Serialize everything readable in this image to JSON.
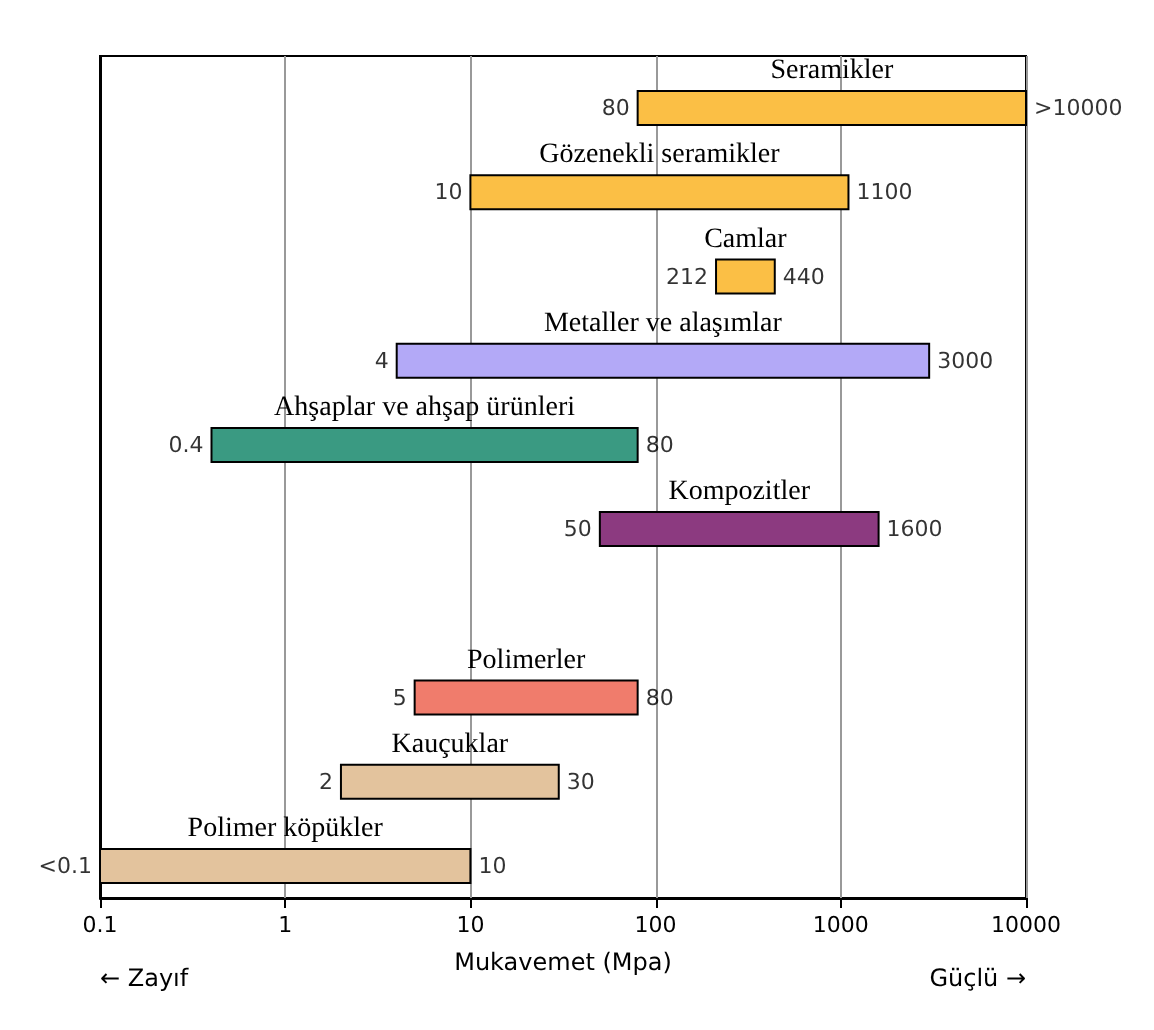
{
  "chart_data": {
    "type": "bar",
    "orientation": "horizontal",
    "xlabel": "Mukavemet (Mpa)",
    "log": "x",
    "xlim": [
      0.1,
      10000
    ],
    "xticks": [
      0.1,
      1,
      10,
      100,
      1000,
      10000
    ],
    "grid": "x",
    "tick_labels": "x",
    "categories": [
      "Seramikler",
      "Gözenekli seramikler",
      "Camlar",
      "Metaller ve alaşımlar",
      "Ahşaplar ve ahşap ürünleri",
      "Kompozitler",
      null,
      "Polimerler",
      "Kauçuklar",
      "Polimer köpükler"
    ],
    "base": [
      80,
      10,
      212,
      4,
      0.4,
      50,
      null,
      5,
      2,
      0.1
    ],
    "values": [
      9920,
      1090,
      228,
      2996,
      79.6,
      1550,
      null,
      75,
      28,
      9.9
    ],
    "colors": [
      "#fbbf45",
      "#fbbf45",
      "#fbbf45",
      "#b3a9f7",
      "#3a9a82",
      "#8c3a80",
      null,
      "#f07c6c",
      "#e3c39d",
      "#e3c39d"
    ],
    "annotations": [
      {
        "text": "80",
        "x": 80,
        "y": "Seramikler"
      },
      {
        "text": ">10000",
        "x": 10000,
        "y": "Seramikler"
      },
      {
        "text": "10",
        "x": 10,
        "y": "Gözenekli seramikler"
      },
      {
        "text": "1100",
        "x": 1100,
        "y": "Gözenekli seramikler"
      },
      {
        "text": "212",
        "x": 212,
        "y": "Camlar"
      },
      {
        "text": "440",
        "x": 440,
        "y": "Camlar"
      },
      {
        "text": "4",
        "x": 4,
        "y": "Metaller ve alaşımlar"
      },
      {
        "text": "3000",
        "x": 3000,
        "y": "Metaller ve alaşımlar"
      },
      {
        "text": "0.4",
        "x": 0.4,
        "y": "Ahşaplar ve ahşap ürünleri"
      },
      {
        "text": "80",
        "x": 80,
        "y": "Ahşaplar ve ahşap ürünleri"
      },
      {
        "text": "50",
        "x": 50,
        "y": "Kompozitler"
      },
      {
        "text": "1600",
        "x": 1600,
        "y": "Kompozitler"
      },
      {
        "text": "5",
        "x": 5,
        "y": "Polimerler"
      },
      {
        "text": "80",
        "x": 80,
        "y": "Polimerler"
      },
      {
        "text": "2",
        "x": 2,
        "y": "Kauçuklar"
      },
      {
        "text": "30",
        "x": 30,
        "y": "Kauçuklar"
      },
      {
        "text": "<0.1",
        "x": 0.1,
        "y": "Polimer köpükler"
      },
      {
        "text": "10",
        "x": 10,
        "y": "Polimer köpükler"
      },
      "← Zayıf",
      "Güçlü →"
    ]
  }
}
